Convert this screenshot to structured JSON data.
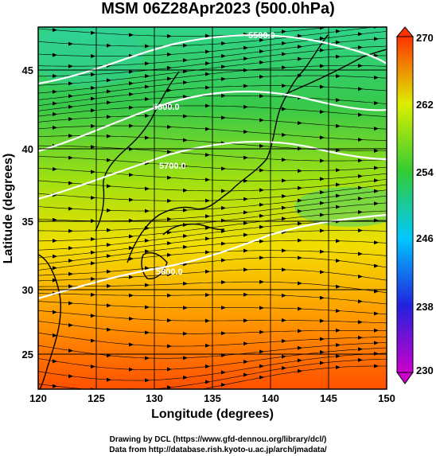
{
  "title": "MSM 06Z28Apr2023 (500.0hPa)",
  "xlabel": "Longitude (degrees)",
  "ylabel": "Latitude  (degrees)",
  "credits": [
    "Drawing by DCL (https://www.gfd-dennou.org/library/dcl/)",
    "Data from http://database.rish.kyoto-u.ac.jp/arch/jmadata/"
  ],
  "map": {
    "xlim": [
      120,
      150
    ],
    "ylim": [
      22.4,
      47.6
    ],
    "xticks": [
      "120",
      "125",
      "130",
      "135",
      "140",
      "145",
      "150"
    ],
    "yticks": [
      "25",
      "30",
      "35",
      "40",
      "45"
    ],
    "contour_labels": [
      "5500.0",
      "5600.0",
      "5700.0",
      "5800.0"
    ]
  },
  "colorbar": {
    "ticks": [
      "230",
      "238",
      "246",
      "254",
      "262",
      "270"
    ],
    "range": [
      230,
      270
    ],
    "colors": [
      "#cc00cc",
      "#2222dd",
      "#00c8ff",
      "#33cc33",
      "#ddee00",
      "#ff3300"
    ]
  }
}
